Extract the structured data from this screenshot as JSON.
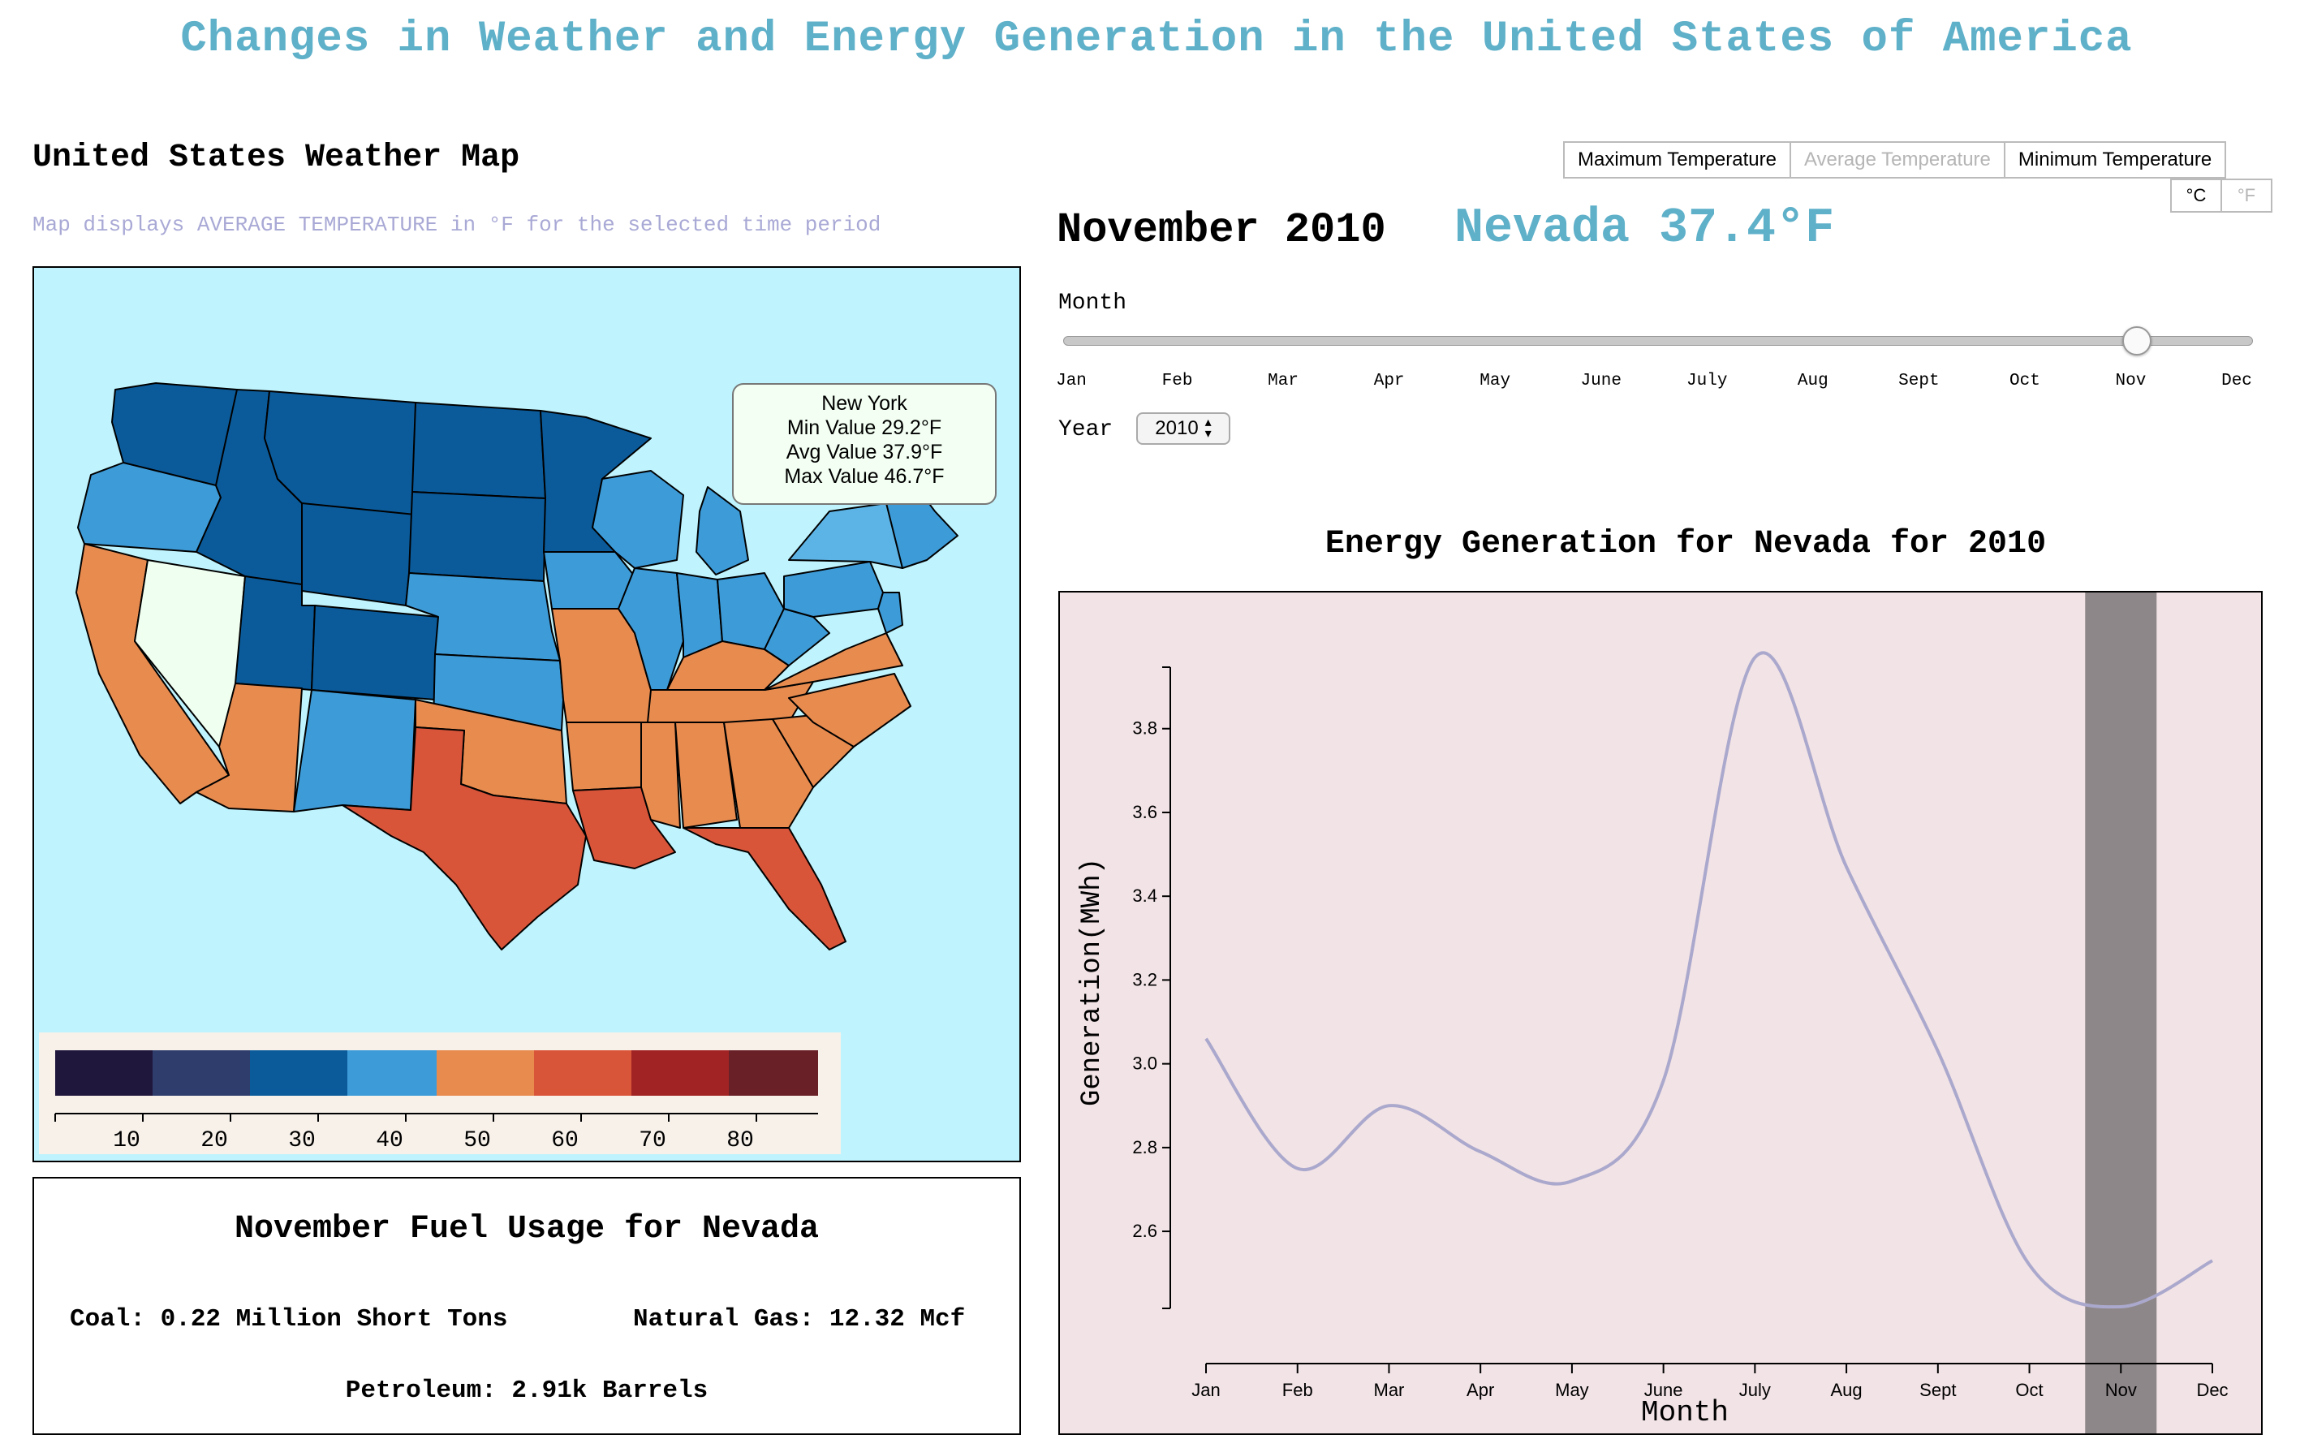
{
  "page": {
    "title": "Changes in Weather and Energy Generation in the United States of America"
  },
  "map": {
    "title": "United States Weather Map",
    "subtitle": "Map displays AVERAGE TEMPERATURE in °F for the selected time period",
    "selected_state": "Nevada",
    "colors": {
      "ocean": "#bff3fd",
      "selected": "#effff0",
      "bin_30": "#0b5b9b",
      "bin_40": "#3d9bd8",
      "bin_40_light": "#5cb4e6",
      "bin_50": "#e88b4f",
      "bin_60": "#d9553a"
    },
    "tooltip": {
      "state": "New York",
      "min": "Min Value 29.2°F",
      "avg": "Avg Value 37.9°F",
      "max": "Max Value 46.7°F"
    },
    "legend": {
      "colors": [
        "#20173d",
        "#2f3d6c",
        "#0b5b9b",
        "#3d9bd8",
        "#e88b4f",
        "#d9553a",
        "#a12323",
        "#692026"
      ],
      "ticks": [
        "10",
        "20",
        "30",
        "40",
        "50",
        "60",
        "70",
        "80"
      ]
    }
  },
  "fuel": {
    "title": "November Fuel Usage for Nevada",
    "coal": "Coal: 0.22 Million Short Tons",
    "natural_gas": "Natural Gas: 12.32 Mcf",
    "petroleum": "Petroleum: 2.91k Barrels"
  },
  "controls": {
    "temp_buttons": [
      {
        "label": "Maximum Temperature",
        "active": true
      },
      {
        "label": "Average Temperature",
        "active": false
      },
      {
        "label": "Minimum Temperature",
        "active": true
      }
    ],
    "unit_buttons": [
      {
        "label": "°C",
        "active": true
      },
      {
        "label": "°F",
        "active": false
      }
    ],
    "date": "November 2010",
    "state_temp": "Nevada 37.4°F",
    "month_label": "Month",
    "months": [
      "Jan",
      "Feb",
      "Mar",
      "Apr",
      "May",
      "June",
      "July",
      "Aug",
      "Sept",
      "Oct",
      "Nov",
      "Dec"
    ],
    "selected_month_index": 10,
    "year_label": "Year",
    "year_value": "2010"
  },
  "chart_data": {
    "type": "line",
    "title": "Energy Generation for Nevada for 2010",
    "xlabel": "Month",
    "ylabel": "Generation(MWh)",
    "categories": [
      "Jan",
      "Feb",
      "Mar",
      "Apr",
      "May",
      "June",
      "July",
      "Aug",
      "Sept",
      "Oct",
      "Nov",
      "Dec"
    ],
    "series": [
      {
        "values": [
          3.06,
          2.75,
          2.9,
          2.79,
          2.72,
          2.96,
          3.97,
          3.47,
          3.03,
          2.52,
          2.42,
          2.53
        ]
      }
    ],
    "yticks": [
      "2.6",
      "2.8",
      "3.0",
      "3.2",
      "3.4",
      "3.6",
      "3.8"
    ],
    "ylim": [
      2.42,
      3.97
    ],
    "highlight_category": "Nov",
    "colors": {
      "line": "#aaa8cc",
      "highlight": "#8e8789",
      "background": "#f2e3e6"
    }
  }
}
